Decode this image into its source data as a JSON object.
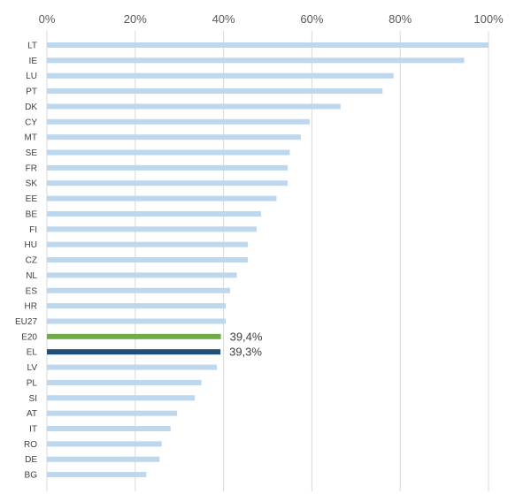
{
  "chart_data": {
    "type": "bar",
    "orientation": "horizontal",
    "categories": [
      "LT",
      "IE",
      "LU",
      "PT",
      "DK",
      "CY",
      "MT",
      "SE",
      "FR",
      "SK",
      "EE",
      "BE",
      "FI",
      "HU",
      "CZ",
      "NL",
      "ES",
      "HR",
      "EU27",
      "E20",
      "EL",
      "LV",
      "PL",
      "SI",
      "AT",
      "IT",
      "RO",
      "DE",
      "BG"
    ],
    "values": [
      100,
      94.5,
      78.5,
      76,
      66.5,
      59.5,
      57.5,
      55,
      54.5,
      54.5,
      52,
      48.5,
      47.5,
      45.5,
      45.5,
      43,
      41.5,
      40.5,
      40.5,
      39.4,
      39.3,
      38.5,
      35,
      33.5,
      29.5,
      28,
      26,
      25.5,
      22.5
    ],
    "bar_colors": {
      "default": "#bdd7ee",
      "E20": "#70ad47",
      "EL": "#1f4e79"
    },
    "data_labels": {
      "E20": "39,4%",
      "EL": "39,3%"
    },
    "x_ticks": [
      "0%",
      "20%",
      "40%",
      "60%",
      "80%",
      "100%"
    ],
    "xlim": [
      0,
      100
    ],
    "x_axis_position": "top",
    "grid": true,
    "title": "",
    "xlabel": "",
    "ylabel": ""
  }
}
